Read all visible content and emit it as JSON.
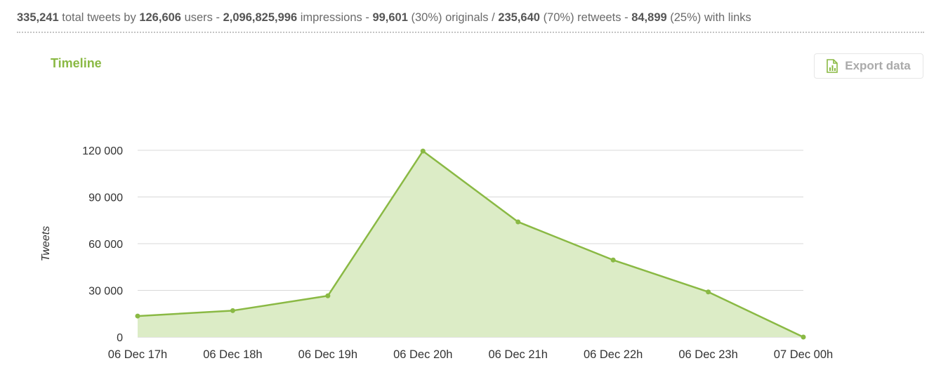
{
  "summary": {
    "total_tweets": "335,241",
    "total_tweets_text": "total tweets by",
    "users": "126,606",
    "users_text": "users -",
    "impressions": "2,096,825,996",
    "impressions_text": "impressions -",
    "originals": "99,601",
    "originals_text": "(30%) originals /",
    "retweets": "235,640",
    "retweets_text": "(70%) retweets -",
    "links": "84,899",
    "links_text": "(25%) with links"
  },
  "section_title": "Timeline",
  "export_label": "Export data",
  "icons": {
    "export": "spreadsheet-file-icon"
  },
  "colors": {
    "accent": "#8ab944",
    "fill": "#dcecc6",
    "grid": "#d8d8d8"
  },
  "chart_data": {
    "type": "area",
    "title": "",
    "xlabel": "",
    "ylabel": "Tweets",
    "categories": [
      "06 Dec 17h",
      "06 Dec 18h",
      "06 Dec 19h",
      "06 Dec 20h",
      "06 Dec 21h",
      "06 Dec 22h",
      "06 Dec 23h",
      "07 Dec 00h"
    ],
    "series": [
      {
        "values": [
          13500,
          17000,
          26500,
          119500,
          74000,
          49500,
          29000,
          0
        ]
      }
    ],
    "yticks": [
      0,
      30000,
      60000,
      90000,
      120000
    ],
    "ytick_labels": [
      "0",
      "30 000",
      "60 000",
      "90 000",
      "120 000"
    ],
    "ylim": [
      0,
      120000
    ],
    "grid": true,
    "legend": "none"
  }
}
